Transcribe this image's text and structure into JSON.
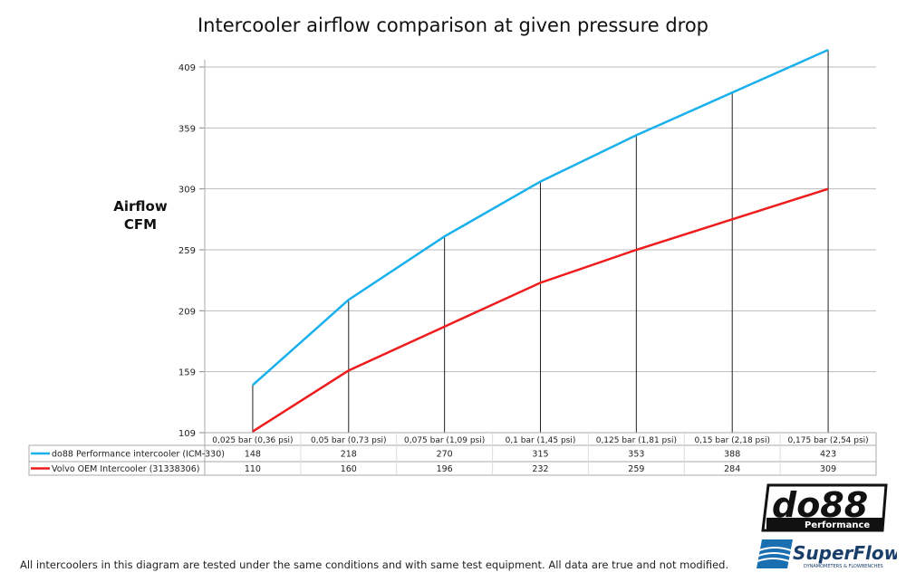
{
  "chart_data": {
    "type": "line",
    "title": "Intercooler airflow comparison at given pressure drop",
    "ylabel": [
      "Airflow",
      "CFM"
    ],
    "xlabel": "",
    "ylim": [
      109,
      409
    ],
    "yticks": [
      109,
      159,
      209,
      259,
      309,
      359,
      409
    ],
    "grid": true,
    "legend": "table-below",
    "categories": [
      "0,025 bar (0,36 psi)",
      "0,05 bar (0,73 psi)",
      "0,075 bar (1,09 psi)",
      "0,1 bar (1,45 psi)",
      "0,125 bar (1,81 psi)",
      "0,15 bar (2,18 psi)",
      "0,175 bar (2,54 psi)"
    ],
    "series": [
      {
        "name": "do88 Performance intercooler (ICM-330)",
        "color": "#1ab0ec",
        "values": [
          148,
          218,
          270,
          315,
          353,
          388,
          423
        ]
      },
      {
        "name": "Volvo OEM Intercooler (31338306)",
        "color": "#ee1c1c",
        "values": [
          110,
          160,
          196,
          232,
          259,
          284,
          309
        ]
      }
    ]
  },
  "footnote": "All intercoolers in this diagram are tested under the same conditions and with same test equipment. All data are true and not modified.",
  "logos": {
    "do88": "do88",
    "do88_sub": "Performance",
    "superflow": "SuperFlow",
    "superflow_sub": "DYNAMOMETERS & FLOWBENCHES"
  }
}
